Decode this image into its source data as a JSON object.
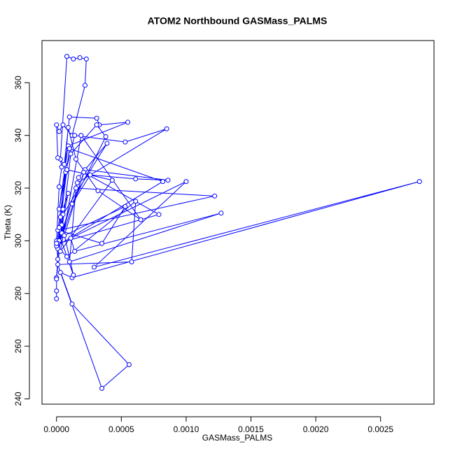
{
  "chart_data": {
    "type": "line",
    "title": "ATOM2 Northbound GASMass_PALMS",
    "x_label": "GASMass_PALMS",
    "y_label": "Theta (K)",
    "color": "#0000ff",
    "markers": true,
    "x": [
      0,
      0,
      0,
      1e-05,
      0,
      2e-05,
      4e-05,
      3e-05,
      8e-05,
      0.00013,
      0.00018,
      0.00023,
      0.00022,
      0.00012,
      5e-05,
      2e-05,
      0,
      1e-05,
      6e-05,
      0.0001,
      0.00031,
      0.00033,
      0.00055,
      9e-05,
      2e-05,
      7e-05,
      0.00014,
      0.00053,
      0.00085,
      0.00016,
      4e-05,
      0.00011,
      0.00031,
      0.00038,
      0.00012,
      0.00026,
      0.00061,
      0.00086,
      0.00022,
      1e-05,
      0.00017,
      0.00039,
      5e-05,
      2e-05,
      9e-05,
      0.00015,
      0.00032,
      0.00065,
      0.00019,
      3e-05,
      0.00043,
      8e-05,
      1e-05,
      0.00079,
      0.00021,
      6e-05,
      0.00053,
      0.00035,
      2e-05,
      0.00122,
      0.00015,
      0.0001,
      0.00127,
      0.00014,
      0.00011,
      0.001,
      0.00029,
      0.0028,
      0.00012,
      3e-05,
      0.00035,
      0.00056,
      0.00012,
      1e-05,
      0.00058,
      0.00061,
      8e-05,
      0,
      0.00082,
      0.0001,
      1e-05,
      0.00013,
      3e-05,
      0,
      4e-05,
      9e-05,
      5e-05,
      2e-05,
      0
    ],
    "values": [
      278,
      281,
      286,
      293,
      300,
      320.5,
      328,
      331,
      370,
      369,
      369.5,
      369,
      359,
      340,
      344,
      341.5,
      344,
      331.5,
      329,
      347,
      346.5,
      344,
      345,
      336,
      312,
      326,
      340,
      337.5,
      342.5,
      322,
      303,
      333,
      344,
      339.5,
      314,
      325,
      323.5,
      323,
      327,
      297,
      324,
      337,
      310,
      300,
      343,
      331,
      319,
      308,
      340,
      296,
      323,
      327,
      299,
      310,
      326,
      302,
      313,
      299,
      304,
      317,
      320,
      292,
      310.5,
      296,
      301,
      322.5,
      290,
      322.5,
      286,
      288,
      244,
      253,
      276,
      291,
      292,
      315,
      294,
      298,
      322.5,
      335,
      304,
      287,
      309,
      285.5,
      306,
      318,
      312,
      305,
      299
    ],
    "xlim": [
      -0.000112,
      0.002912
    ],
    "ylim": [
      238,
      376
    ],
    "xticks": [
      {
        "value": 0,
        "label": "0.0000"
      },
      {
        "value": 0.0005,
        "label": "0.0005"
      },
      {
        "value": 0.001,
        "label": "0.0010"
      },
      {
        "value": 0.0015,
        "label": "0.0015"
      },
      {
        "value": 0.002,
        "label": "0.0020"
      },
      {
        "value": 0.0025,
        "label": "0.0025"
      }
    ],
    "yticks": [
      240,
      260,
      280,
      300,
      320,
      340,
      360
    ]
  }
}
